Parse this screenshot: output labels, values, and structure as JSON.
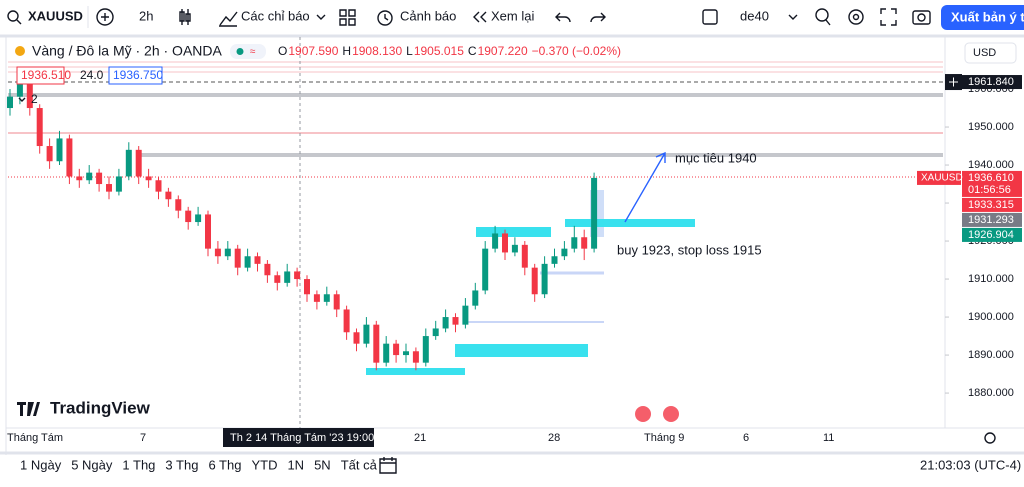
{
  "toolbar": {
    "symbol": "XAUUSD",
    "interval": "2h",
    "indicators": "Các chỉ báo",
    "alerts": "Cảnh báo",
    "replay": "Xem lại",
    "layout": "de40",
    "publish": "Xuất bản ý tư"
  },
  "legend": {
    "title": "Vàng / Đô la Mỹ · 2h · OANDA",
    "ohlc": [
      {
        "k": "O",
        "v": "1907.590"
      },
      {
        "k": "H",
        "v": "1908.130"
      },
      {
        "k": "L",
        "v": "1905.015"
      },
      {
        "k": "C",
        "v": "1907.220"
      }
    ],
    "change": "−0.370 (−0.02%)",
    "sell": "1936.510",
    "spread": "24.0",
    "buy": "1936.750",
    "collapsed": "2"
  },
  "chart_data": {
    "type": "candlestick",
    "currency": "USD",
    "ylim": [
      1871.6,
      1972.9
    ],
    "yticks": [
      {
        "value": 1880,
        "label": "1880.000"
      },
      {
        "value": 1890,
        "label": "1890.000"
      },
      {
        "value": 1900,
        "label": "1900.000"
      },
      {
        "value": 1910,
        "label": "1910.000"
      },
      {
        "value": 1920,
        "label": "1920.000"
      },
      {
        "value": 1930,
        "label": "1930.000"
      },
      {
        "value": 1940,
        "label": "1940.000"
      },
      {
        "value": 1950,
        "label": "1950.000"
      },
      {
        "value": 1960,
        "label": "1960.000"
      }
    ],
    "x_labels": [
      "Tháng Tám",
      "7",
      "21",
      "28",
      "Tháng 9",
      "6",
      "11"
    ],
    "crosshair_label": "Th 2 14 Tháng Tám '23   19:00",
    "candles": [
      [
        1955,
        1960,
        1953,
        1958
      ],
      [
        1958,
        1965,
        1956,
        1962
      ],
      [
        1962,
        1963,
        1953,
        1955
      ],
      [
        1955,
        1956,
        1943,
        1945
      ],
      [
        1945,
        1947,
        1939,
        1941
      ],
      [
        1941,
        1949,
        1940,
        1947
      ],
      [
        1947,
        1948,
        1935,
        1937
      ],
      [
        1937,
        1939,
        1934,
        1936
      ],
      [
        1936,
        1940,
        1935,
        1938
      ],
      [
        1938,
        1939,
        1933,
        1935
      ],
      [
        1935,
        1937,
        1931,
        1933
      ],
      [
        1933,
        1939,
        1932,
        1937
      ],
      [
        1937,
        1946,
        1936,
        1944
      ],
      [
        1944,
        1945,
        1935,
        1937
      ],
      [
        1937,
        1939,
        1934,
        1936
      ],
      [
        1936,
        1937,
        1931,
        1933
      ],
      [
        1933,
        1934,
        1929,
        1931
      ],
      [
        1931,
        1932,
        1926,
        1928
      ],
      [
        1928,
        1929,
        1923,
        1925
      ],
      [
        1925,
        1929,
        1924,
        1927
      ],
      [
        1927,
        1928,
        1916,
        1918
      ],
      [
        1918,
        1920,
        1914,
        1916
      ],
      [
        1916,
        1920,
        1915,
        1918
      ],
      [
        1918,
        1919,
        1911,
        1913
      ],
      [
        1913,
        1918,
        1912,
        1916
      ],
      [
        1916,
        1917,
        1912,
        1914
      ],
      [
        1914,
        1915,
        1909,
        1911
      ],
      [
        1911,
        1912,
        1907,
        1909
      ],
      [
        1909,
        1914,
        1908,
        1912
      ],
      [
        1912,
        1913,
        1908,
        1910
      ],
      [
        1910,
        1911,
        1904,
        1906
      ],
      [
        1906,
        1907,
        1902,
        1904
      ],
      [
        1904,
        1908,
        1903,
        1906
      ],
      [
        1906,
        1907,
        1900,
        1902
      ],
      [
        1902,
        1903,
        1894,
        1896
      ],
      [
        1896,
        1897,
        1891,
        1893
      ],
      [
        1893,
        1900,
        1892,
        1898
      ],
      [
        1898,
        1899,
        1886,
        1888
      ],
      [
        1888,
        1895,
        1887,
        1893
      ],
      [
        1893,
        1894,
        1888,
        1890
      ],
      [
        1890,
        1893,
        1888,
        1891
      ],
      [
        1891,
        1892,
        1886,
        1888
      ],
      [
        1888,
        1897,
        1887,
        1895
      ],
      [
        1895,
        1899,
        1894,
        1897
      ],
      [
        1897,
        1902,
        1896,
        1900
      ],
      [
        1900,
        1901,
        1896,
        1898
      ],
      [
        1898,
        1905,
        1897,
        1903
      ],
      [
        1903,
        1909,
        1902,
        1907
      ],
      [
        1907,
        1920,
        1906,
        1918
      ],
      [
        1918,
        1924,
        1917,
        1922
      ],
      [
        1922,
        1923,
        1915,
        1917
      ],
      [
        1917,
        1921,
        1916,
        1919
      ],
      [
        1919,
        1920,
        1911,
        1913
      ],
      [
        1913,
        1914,
        1904,
        1906
      ],
      [
        1906,
        1916,
        1905,
        1914
      ],
      [
        1914,
        1918,
        1913,
        1916
      ],
      [
        1916,
        1920,
        1915,
        1918
      ],
      [
        1918,
        1924,
        1917,
        1921
      ],
      [
        1921,
        1923,
        1915,
        1918
      ],
      [
        1918,
        1938,
        1917,
        1936.61
      ]
    ],
    "up_color": "#089981",
    "down_color": "#f23645",
    "price_tags": [
      {
        "value": 1961.84,
        "label": "1961.840",
        "color": "#131722"
      },
      {
        "value": 1936.61,
        "label": "1936.610",
        "color": "#f23645",
        "symbol": "XAUUSD",
        "countdown": "01:56:56"
      },
      {
        "value": 1933.315,
        "label": "1933.315",
        "color": "#f23645"
      },
      {
        "value": 1931.293,
        "label": "1931.293",
        "color": "#787b86"
      },
      {
        "value": 1926.904,
        "label": "1926.904",
        "color": "#089981"
      }
    ],
    "annotations": [
      "mục tiêu 1940",
      "buy 1923, stop loss 1915"
    ],
    "watermark": "TradingView"
  },
  "bottom_bar": {
    "ranges": [
      "1 Ngày",
      "5 Ngày",
      "1 Thg",
      "3 Thg",
      "6 Thg",
      "YTD",
      "1N",
      "5N",
      "Tất cả"
    ],
    "clock": "21:03:03 (UTC-4)"
  }
}
